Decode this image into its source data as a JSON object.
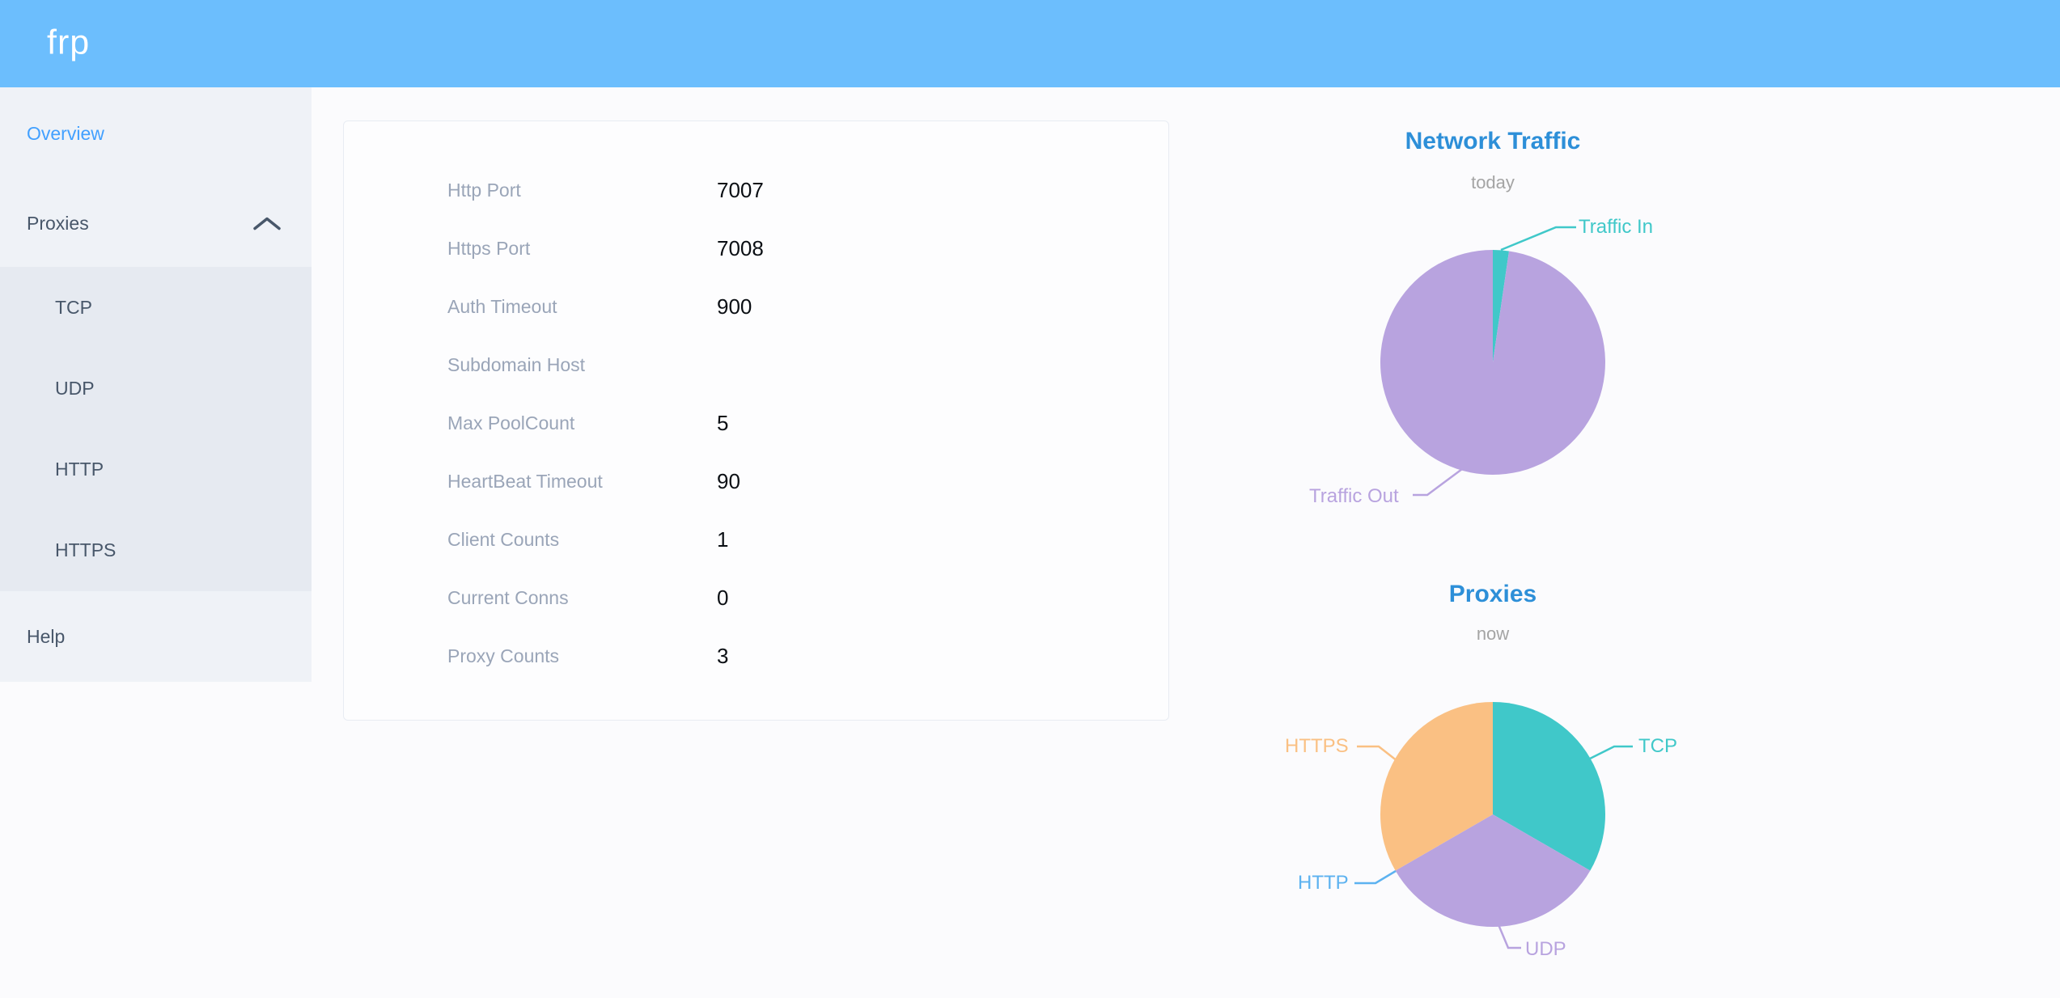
{
  "header": {
    "logo": "frp"
  },
  "colors": {
    "header_bg": "#6CBEFD",
    "logo_text": "#FFFFFF",
    "active_menu": "#42A0FF",
    "menu_text": "#48576A",
    "chart_title": "#2D8FD8",
    "chart_subtitle": "#A4A4A4",
    "teal": "#40C8C9",
    "purple": "#B8A3DF",
    "light_blue": "#5CB2F0",
    "orange": "#FAC083"
  },
  "sidebar": {
    "overview_label": "Overview",
    "proxies_label": "Proxies",
    "submenu": [
      {
        "label": "TCP"
      },
      {
        "label": "UDP"
      },
      {
        "label": "HTTP"
      },
      {
        "label": "HTTPS"
      }
    ],
    "help_label": "Help"
  },
  "server_info": {
    "rows": [
      {
        "label": "Http Port",
        "value": "7007"
      },
      {
        "label": "Https Port",
        "value": "7008"
      },
      {
        "label": "Auth Timeout",
        "value": "900"
      },
      {
        "label": "Subdomain Host",
        "value": ""
      },
      {
        "label": "Max PoolCount",
        "value": "5"
      },
      {
        "label": "HeartBeat Timeout",
        "value": "90"
      },
      {
        "label": "Client Counts",
        "value": "1"
      },
      {
        "label": "Current Conns",
        "value": "0"
      },
      {
        "label": "Proxy Counts",
        "value": "3"
      }
    ]
  },
  "chart_data": [
    {
      "type": "pie",
      "title": "Network Traffic",
      "subtitle": "today",
      "labels": [
        "Traffic In",
        "Traffic Out"
      ],
      "values_percent_estimated": [
        2.3,
        97.7
      ],
      "colors": [
        "#40C8C9",
        "#B8A3DF"
      ],
      "legend": false,
      "label_style": "outside-leader-lines"
    },
    {
      "type": "pie",
      "title": "Proxies",
      "subtitle": "now",
      "labels": [
        "TCP",
        "UDP",
        "HTTP",
        "HTTPS"
      ],
      "values": [
        1,
        1,
        0,
        1
      ],
      "colors": [
        "#40C8C9",
        "#B8A3DF",
        "#5CB2F0",
        "#FAC083"
      ],
      "legend": false,
      "label_style": "outside-leader-lines"
    }
  ]
}
